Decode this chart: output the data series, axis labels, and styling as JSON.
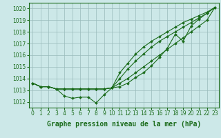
{
  "hours": [
    0,
    1,
    2,
    3,
    4,
    5,
    6,
    7,
    8,
    9,
    10,
    11,
    12,
    13,
    14,
    15,
    16,
    17,
    18,
    19,
    20,
    21,
    22,
    23
  ],
  "line1": [
    1013.6,
    1013.3,
    1013.3,
    1013.1,
    1012.5,
    1012.3,
    1012.4,
    1012.4,
    1011.9,
    1012.6,
    1013.2,
    1013.3,
    1013.6,
    1014.1,
    1014.5,
    1015.1,
    1015.8,
    1016.6,
    1017.8,
    1017.2,
    1018.5,
    1019.1,
    1019.6,
    1020.1
  ],
  "line2": [
    1013.6,
    1013.3,
    1013.3,
    1013.1,
    1013.1,
    1013.1,
    1013.1,
    1013.1,
    1013.1,
    1013.1,
    1013.2,
    1013.6,
    1014.0,
    1014.5,
    1015.0,
    1015.5,
    1016.0,
    1016.5,
    1017.0,
    1017.5,
    1018.0,
    1018.5,
    1019.0,
    1020.1
  ],
  "line3": [
    1013.6,
    1013.3,
    1013.3,
    1013.1,
    1013.1,
    1013.1,
    1013.1,
    1013.1,
    1013.1,
    1013.1,
    1013.2,
    1014.0,
    1014.8,
    1015.5,
    1016.1,
    1016.7,
    1017.2,
    1017.6,
    1018.0,
    1018.4,
    1018.8,
    1019.2,
    1019.6,
    1020.1
  ],
  "line4": [
    1013.6,
    1013.3,
    1013.3,
    1013.1,
    1013.1,
    1013.1,
    1013.1,
    1013.1,
    1013.1,
    1013.1,
    1013.2,
    1014.5,
    1015.3,
    1016.1,
    1016.7,
    1017.2,
    1017.6,
    1018.0,
    1018.4,
    1018.8,
    1019.1,
    1019.4,
    1019.7,
    1020.1
  ],
  "ylim": [
    1011.5,
    1020.5
  ],
  "yticks": [
    1012,
    1013,
    1014,
    1015,
    1016,
    1017,
    1018,
    1019,
    1020
  ],
  "xticks": [
    0,
    1,
    2,
    3,
    4,
    5,
    6,
    7,
    8,
    9,
    10,
    11,
    12,
    13,
    14,
    15,
    16,
    17,
    18,
    19,
    20,
    21,
    22,
    23
  ],
  "xlabel": "Graphe pression niveau de la mer (hPa)",
  "line_color": "#1a6b1a",
  "bg_color": "#cce8e8",
  "grid_color": "#99bbbb",
  "marker": "D",
  "marker_size": 2.0,
  "line_width": 0.8,
  "xlabel_fontsize": 7,
  "tick_fontsize": 5.5
}
